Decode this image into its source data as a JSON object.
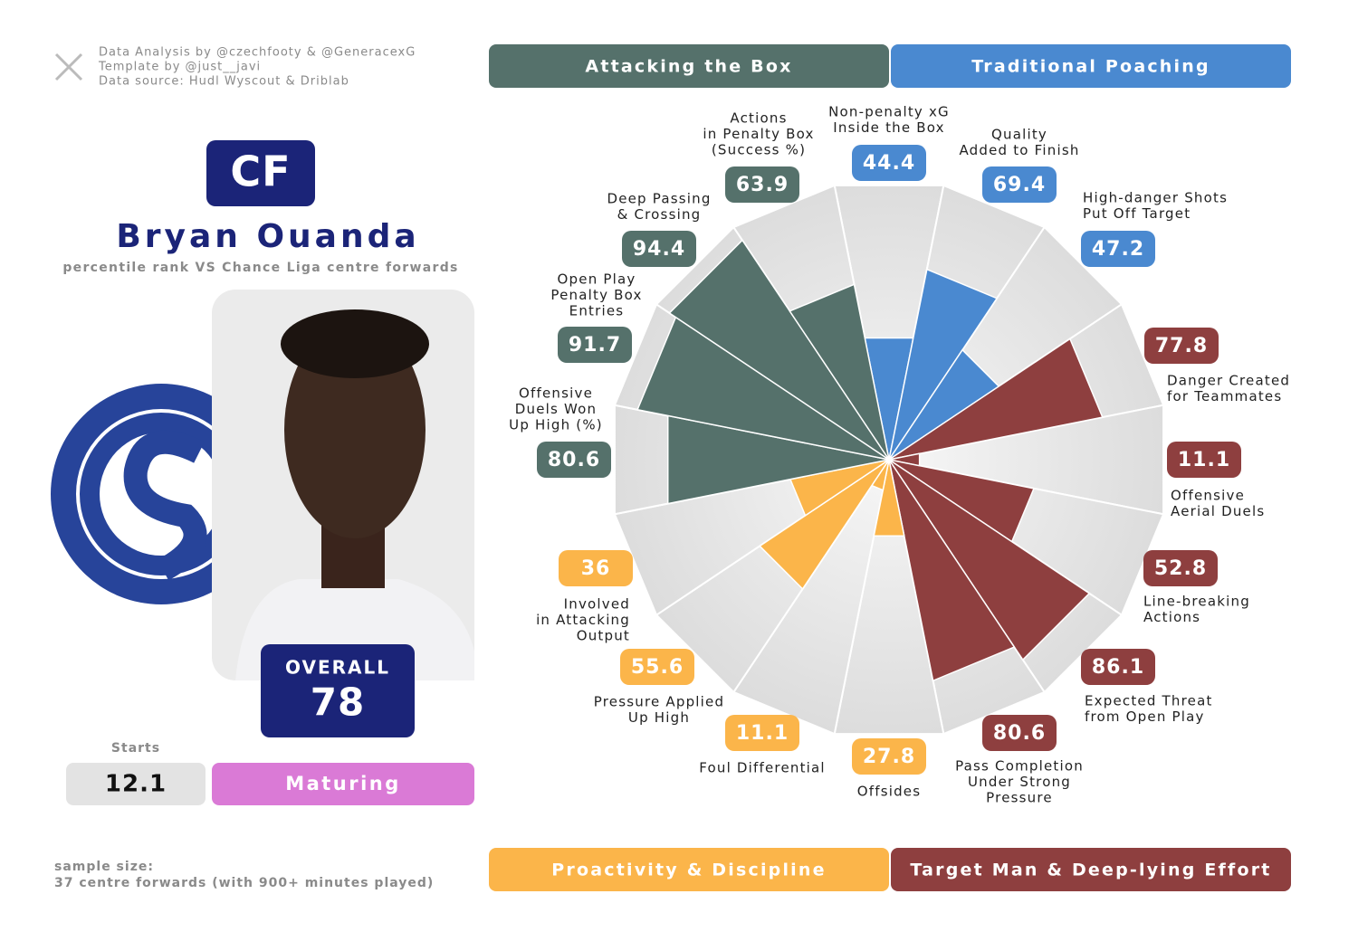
{
  "credits": [
    "Data Analysis by @czechfooty & @GeneracexG",
    "Template by @just__javi",
    "Data source: Hudl Wyscout & Driblab"
  ],
  "player": {
    "position": "CF",
    "name": "Bryan Ouanda",
    "subtitle": "percentile rank VS Chance Liga centre forwards",
    "overall_label": "OVERALL",
    "overall": 78,
    "starts_label": "Starts",
    "starts": 12.1,
    "status": "Maturing"
  },
  "footer": [
    "sample size:",
    "37 centre forwards (with 900+ minutes played)"
  ],
  "chart_data": {
    "type": "pizza",
    "ylim": [
      0,
      100
    ],
    "series": [
      {
        "name": "Traditional Poaching",
        "color": "#4a89d0",
        "categories": [
          [
            "Non-penalty xG",
            "Inside the Box"
          ],
          [
            "Quality",
            "Added to Finish"
          ],
          [
            "High-danger Shots",
            "Put Off Target"
          ]
        ],
        "values": [
          44.4,
          69.4,
          47.2
        ]
      },
      {
        "name": "Target Man & Deep-lying Effort",
        "color": "#8e3f3f",
        "categories": [
          [
            "Danger Created",
            "for Teammates"
          ],
          [
            "Offensive",
            "Aerial Duels"
          ],
          [
            "Line-breaking",
            "Actions"
          ],
          [
            "Expected Threat",
            "from Open Play"
          ],
          [
            "Pass Completion",
            "Under Strong",
            "Pressure"
          ]
        ],
        "values": [
          77.8,
          11.1,
          52.8,
          86.1,
          80.6
        ]
      },
      {
        "name": "Proactivity & Discipline",
        "color": "#fbb54a",
        "categories": [
          [
            "Offsides"
          ],
          [
            "Foul Differential"
          ],
          [
            "Pressure Applied",
            "Up High"
          ],
          [
            "Involved",
            "in Attacking",
            "Output"
          ]
        ],
        "values": [
          27.8,
          11.1,
          55.6,
          36
        ]
      },
      {
        "name": "Attacking the Box",
        "color": "#55716b",
        "categories": [
          [
            "Offensive",
            "Duels Won",
            "Up High (%)"
          ],
          [
            "Open Play",
            "Penalty Box",
            "Entries"
          ],
          [
            "Deep Passing",
            "& Crossing"
          ],
          [
            "Actions",
            "in Penalty Box",
            "(Success %)"
          ]
        ],
        "values": [
          80.6,
          91.7,
          94.4,
          63.9
        ]
      }
    ]
  }
}
